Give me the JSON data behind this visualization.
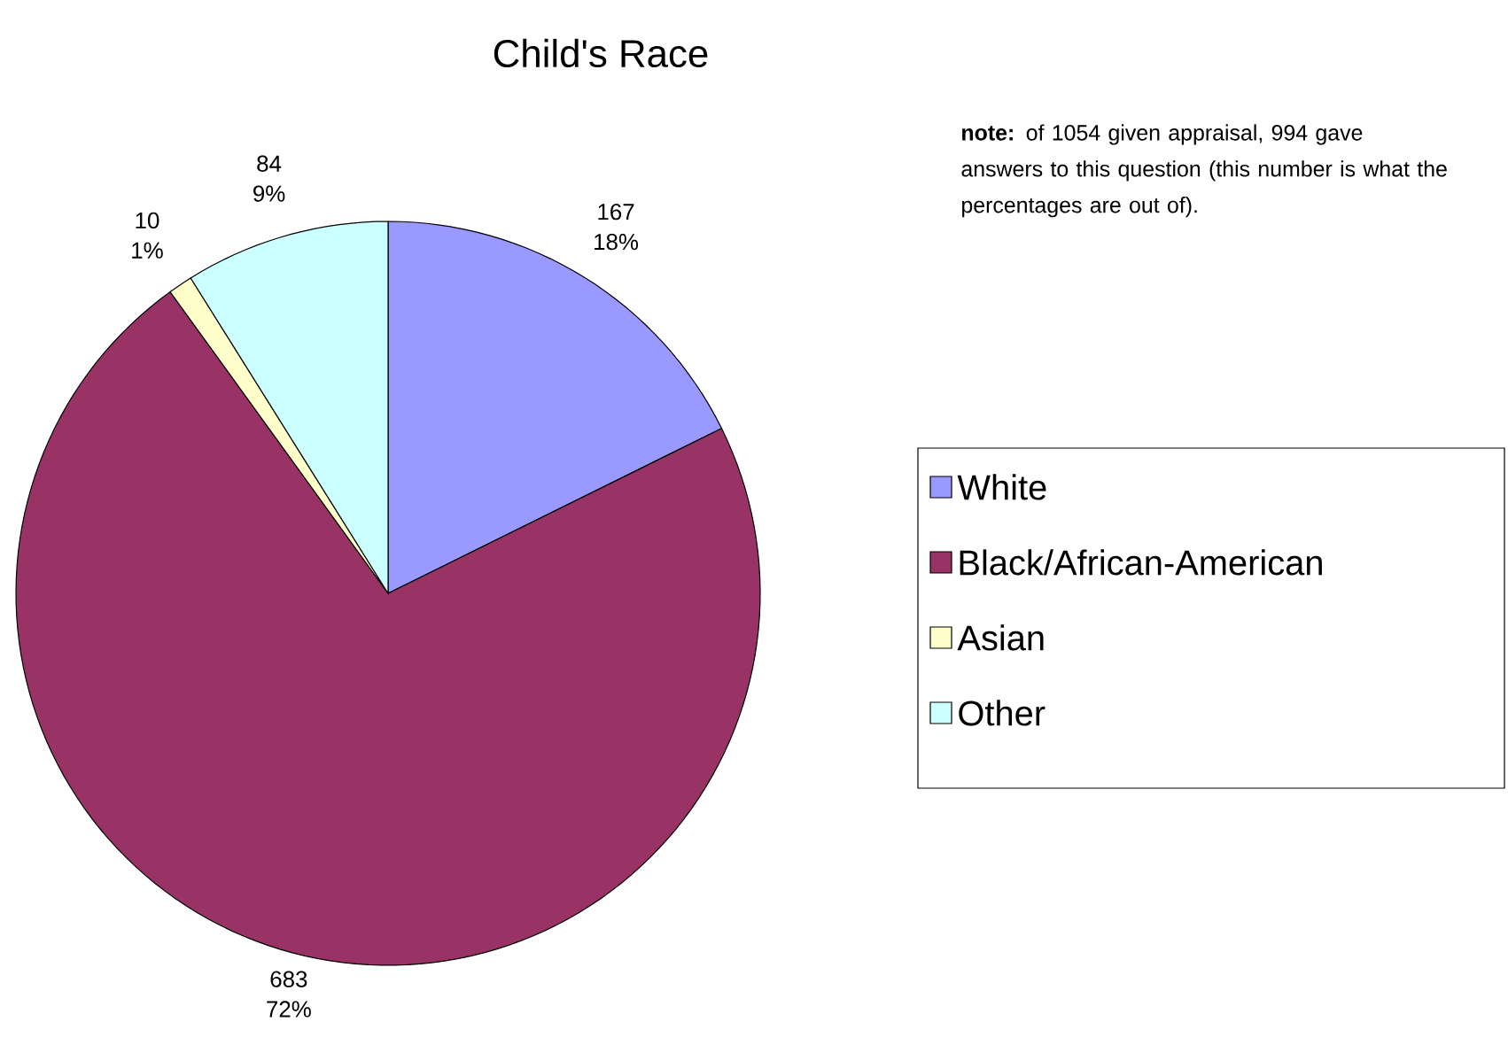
{
  "chart_data": {
    "type": "pie",
    "title": "Child's Race",
    "categories": [
      "White",
      "Black/African-American",
      "Asian",
      "Other"
    ],
    "values": [
      167,
      683,
      10,
      84
    ],
    "value_labels": [
      "167 18%",
      "683 72%",
      "10 1%",
      "84 9%"
    ],
    "colors": [
      "#9999ff",
      "#993366",
      "#ffffcc",
      "#ccffff"
    ],
    "legend": "right",
    "annotations": [
      "**note:** of 1054 given appraisal, 994 gave answers to this question (this number is what the percentages are out of)."
    ]
  }
}
